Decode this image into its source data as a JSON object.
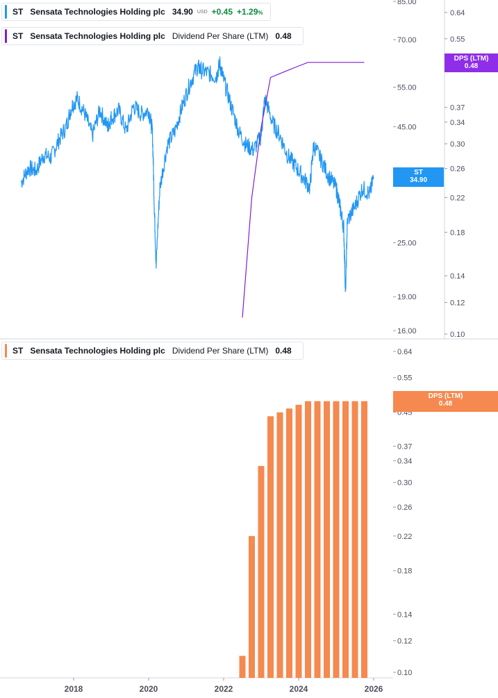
{
  "colors": {
    "price_line": "#2196f3",
    "dps_line": "#7b1fd2",
    "dps_bars": "#f5894f",
    "dps_badge_top": "#8e2ee8",
    "st_badge": "#2196f3",
    "dps_badge_bottom": "#f5894f",
    "positive": "#0b8a3c"
  },
  "legend_top_price": {
    "symbol": "ST",
    "name": "Sensata Technologies Holding plc",
    "price": "34.90",
    "currency": "USD",
    "change": "+0.45",
    "change_pct": "+1.29",
    "pct_sign": "%"
  },
  "legend_top_dps": {
    "symbol": "ST",
    "name": "Sensata Technologies Holding plc",
    "metric": "Dividend Per Share (LTM)",
    "value": "0.48"
  },
  "legend_bottom_dps": {
    "symbol": "ST",
    "name": "Sensata Technologies Holding plc",
    "metric": "Dividend Per Share (LTM)",
    "value": "0.48"
  },
  "badges": {
    "dps_top": {
      "label": "DPS (LTM)",
      "value": "0.48"
    },
    "st": {
      "label": "ST",
      "value": "34.90"
    },
    "dps_bottom": {
      "label": "DPS (LTM)",
      "value": "0.48"
    }
  },
  "chart_data": [
    {
      "type": "line",
      "scale": "log",
      "series": [
        {
          "name": "ST",
          "axis": "price",
          "x": [
            2016.6,
            2016.8,
            2017.0,
            2017.2,
            2017.4,
            2017.6,
            2017.8,
            2017.95,
            2018.1,
            2018.3,
            2018.5,
            2018.7,
            2018.9,
            2019.0,
            2019.2,
            2019.4,
            2019.6,
            2019.8,
            2020.0,
            2020.1,
            2020.15,
            2020.2,
            2020.3,
            2020.5,
            2020.7,
            2020.9,
            2021.1,
            2021.3,
            2021.4,
            2021.6,
            2021.8,
            2021.9,
            2022.0,
            2022.2,
            2022.4,
            2022.6,
            2022.8,
            2023.0,
            2023.1,
            2023.3,
            2023.5,
            2023.7,
            2023.9,
            2024.1,
            2024.3,
            2024.4,
            2024.6,
            2024.8,
            2025.0,
            2025.1,
            2025.2,
            2025.25,
            2025.3,
            2025.5,
            2025.7,
            2025.9,
            2026.0
          ],
          "values": [
            34.0,
            36.5,
            36.0,
            39.0,
            38.5,
            42.0,
            45.0,
            50.0,
            52.0,
            48.0,
            43.0,
            49.0,
            45.0,
            47.0,
            49.0,
            44.0,
            50.0,
            48.0,
            49.0,
            44.0,
            30.0,
            22.0,
            33.0,
            41.0,
            44.0,
            50.0,
            56.0,
            61.0,
            60.0,
            59.0,
            58.0,
            62.0,
            57.0,
            50.0,
            44.0,
            41.0,
            40.0,
            43.0,
            52.0,
            46.0,
            43.0,
            39.0,
            37.0,
            35.0,
            33.0,
            41.0,
            38.0,
            35.0,
            33.0,
            30.0,
            27.0,
            19.0,
            28.0,
            30.0,
            33.0,
            32.0,
            34.9
          ]
        },
        {
          "name": "DPS (LTM)",
          "axis": "dps",
          "x": [
            2022.5,
            2022.75,
            2023.0,
            2023.25,
            2023.5,
            2023.75,
            2024.0,
            2024.25,
            2024.5,
            2024.75,
            2025.0,
            2025.25,
            2025.5,
            2025.75
          ],
          "values": [
            0.11,
            0.22,
            0.33,
            0.44,
            0.45,
            0.46,
            0.47,
            0.48,
            0.48,
            0.48,
            0.48,
            0.48,
            0.48,
            0.48
          ]
        }
      ],
      "y_ticks_price": [
        "16.00",
        "19.00",
        "25.00",
        "35.00",
        "45.00",
        "55.00",
        "70.00",
        "85.00"
      ],
      "y_ticks_dps": [
        "0.10",
        "0.12",
        "0.14",
        "0.18",
        "0.22",
        "0.26",
        "0.30",
        "0.34",
        "0.37",
        "0.48",
        "0.55",
        "0.64"
      ],
      "ylim_price": [
        16,
        85
      ],
      "ylim_dps": [
        0.1,
        0.64
      ]
    },
    {
      "type": "bar",
      "scale": "log",
      "series": [
        {
          "name": "DPS (LTM)",
          "x": [
            2022.5,
            2022.75,
            2023.0,
            2023.25,
            2023.5,
            2023.75,
            2024.0,
            2024.25,
            2024.5,
            2024.75,
            2025.0,
            2025.25,
            2025.5,
            2025.75
          ],
          "values": [
            0.11,
            0.22,
            0.33,
            0.44,
            0.45,
            0.46,
            0.47,
            0.48,
            0.48,
            0.48,
            0.48,
            0.48,
            0.48,
            0.48
          ]
        }
      ],
      "y_ticks": [
        "0.10",
        "0.12",
        "0.14",
        "0.18",
        "0.22",
        "0.26",
        "0.30",
        "0.34",
        "0.37",
        "0.45",
        "0.55",
        "0.64"
      ],
      "ylim": [
        0.1,
        0.64
      ]
    }
  ],
  "x_axis": {
    "ticks": [
      "2018",
      "2020",
      "2022",
      "2024",
      "2026"
    ]
  }
}
